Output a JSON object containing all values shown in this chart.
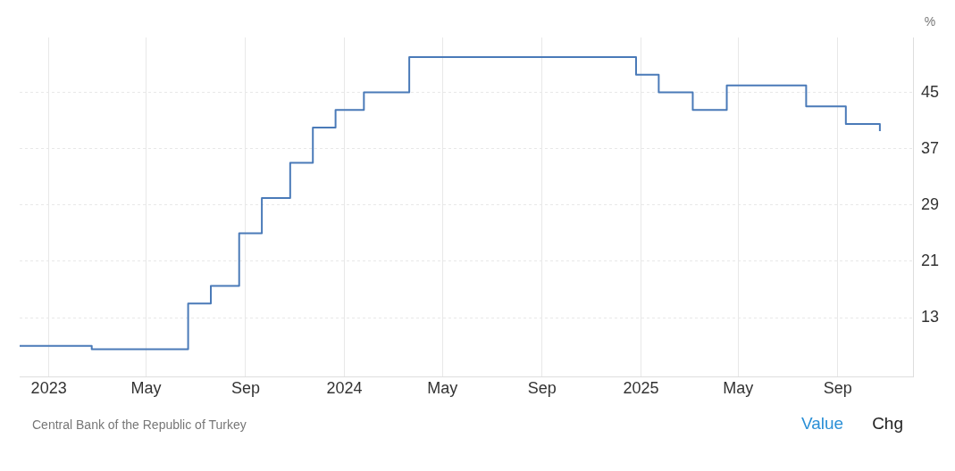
{
  "chart_data": {
    "type": "step",
    "ylabel": "%",
    "x": [
      "2022-11-26",
      "2023-02-23",
      "2023-06-22",
      "2023-07-20",
      "2023-08-24",
      "2023-09-21",
      "2023-10-26",
      "2023-11-23",
      "2023-12-21",
      "2024-01-25",
      "2024-03-21",
      "2024-12-26",
      "2025-01-23",
      "2025-03-06",
      "2025-04-17",
      "2025-07-24",
      "2025-09-11",
      "2025-10-23"
    ],
    "series": [
      {
        "color": "#4a7ab8",
        "values": [
          9,
          8.5,
          15,
          17.5,
          25,
          30,
          35,
          40,
          42.5,
          45,
          50,
          47.5,
          45,
          42.5,
          46,
          43,
          40.5,
          39.5
        ]
      }
    ],
    "xlim": [
      "2022-11-26",
      "2025-12-04"
    ],
    "xticks": [
      {
        "value": "2023-01-01",
        "label": "2023"
      },
      {
        "value": "2023-05-01",
        "label": "May"
      },
      {
        "value": "2023-09-01",
        "label": "Sep"
      },
      {
        "value": "2024-01-01",
        "label": "2024"
      },
      {
        "value": "2024-05-01",
        "label": "May"
      },
      {
        "value": "2024-09-01",
        "label": "Sep"
      },
      {
        "value": "2025-01-01",
        "label": "2025"
      },
      {
        "value": "2025-05-01",
        "label": "May"
      },
      {
        "value": "2025-09-01",
        "label": "Sep"
      }
    ],
    "ylim": [
      4.6,
      52.8
    ],
    "yticks": [
      13,
      21,
      29,
      37,
      45
    ],
    "grid": true,
    "line_style": "solid",
    "marker": "none",
    "annotations": [
      "Central Bank of the Republic of Turkey",
      "Value",
      "Chg"
    ]
  }
}
